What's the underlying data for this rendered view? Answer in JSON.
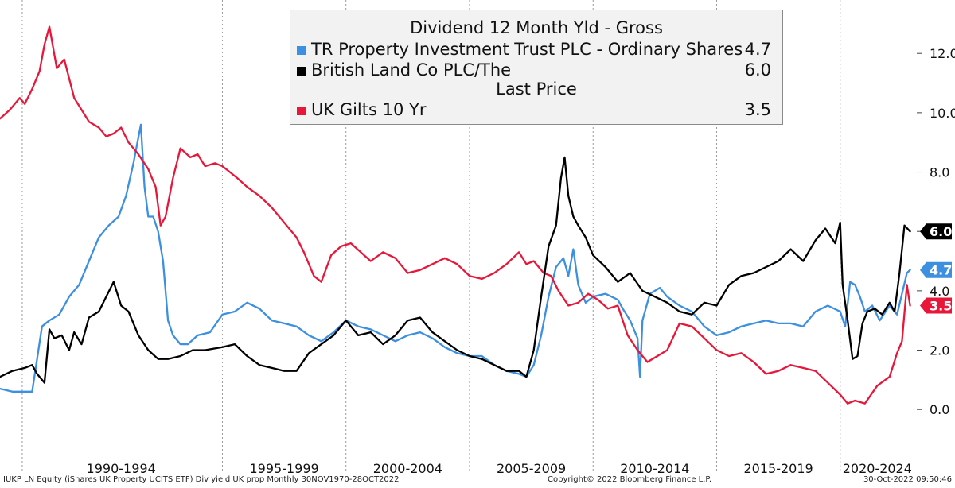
{
  "chart_data": {
    "type": "line",
    "title": "",
    "xlabel": "",
    "ylabel": "",
    "ylim": [
      -1.2,
      13.8
    ],
    "y_ticks": [
      "0.0",
      "2.0",
      "4.0",
      "6.0",
      "8.0",
      "10.0",
      "12.0"
    ],
    "y_tick_values": [
      0,
      2,
      4,
      6,
      8,
      10,
      12
    ],
    "x_range": [
      1986.0,
      2023.1
    ],
    "x_boundaries": [
      1986.9,
      1995.0,
      2000.0,
      2005.0,
      2010.0,
      2015.0,
      2020.0
    ],
    "x_period_labels": [
      {
        "label": "1990-1994",
        "center": 1990.9
      },
      {
        "label": "1995-1999",
        "center": 1997.5
      },
      {
        "label": "2000-2004",
        "center": 2002.5
      },
      {
        "label": "2005-2009",
        "center": 2007.5
      },
      {
        "label": "2010-2014",
        "center": 2012.5
      },
      {
        "label": "2015-2019",
        "center": 2017.5
      },
      {
        "label": "2020-2024",
        "center": 2021.5
      }
    ],
    "grid": "vertical dashed at period boundaries",
    "legend": {
      "position": "top-center",
      "section1_title": "Dividend 12 Month Yld - Gross",
      "section2_title": "Last Price"
    },
    "series": [
      {
        "name": "TR Property Investment Trust PLC - Ordinary Shares",
        "last_value": "4.7",
        "color": "#3d8fe0",
        "x": [
          1986.0,
          1986.5,
          1987.0,
          1987.3,
          1987.7,
          1988.0,
          1988.4,
          1988.8,
          1989.2,
          1989.6,
          1990.0,
          1990.4,
          1990.8,
          1991.1,
          1991.4,
          1991.7,
          1991.85,
          1992.0,
          1992.2,
          1992.4,
          1992.6,
          1992.8,
          1993.0,
          1993.3,
          1993.6,
          1994.0,
          1994.5,
          1995.0,
          1995.5,
          1996.0,
          1996.5,
          1997.0,
          1997.5,
          1998.0,
          1998.5,
          1999.0,
          1999.5,
          2000.0,
          2000.5,
          2001.0,
          2001.5,
          2002.0,
          2002.5,
          2003.0,
          2003.5,
          2004.0,
          2004.5,
          2005.0,
          2005.5,
          2006.0,
          2006.5,
          2007.0,
          2007.3,
          2007.6,
          2007.9,
          2008.2,
          2008.5,
          2008.8,
          2009.0,
          2009.2,
          2009.4,
          2009.7,
          2010.0,
          2010.5,
          2011.0,
          2011.2,
          2011.5,
          2011.8,
          2011.9,
          2012.0,
          2012.3,
          2012.7,
          2013.0,
          2013.5,
          2014.0,
          2014.5,
          2015.0,
          2015.5,
          2016.0,
          2016.5,
          2017.0,
          2017.5,
          2018.0,
          2018.5,
          2019.0,
          2019.5,
          2020.0,
          2020.2,
          2020.4,
          2020.6,
          2020.8,
          2021.0,
          2021.3,
          2021.6,
          2022.0,
          2022.3,
          2022.5,
          2022.7,
          2022.83
        ],
        "y": [
          0.7,
          0.6,
          0.6,
          0.6,
          2.8,
          3.0,
          3.2,
          3.8,
          4.2,
          5.0,
          5.8,
          6.2,
          6.5,
          7.2,
          8.3,
          9.6,
          7.5,
          6.5,
          6.5,
          6.0,
          5.0,
          3.0,
          2.5,
          2.2,
          2.2,
          2.5,
          2.6,
          3.2,
          3.3,
          3.6,
          3.4,
          3.0,
          2.9,
          2.8,
          2.5,
          2.3,
          2.6,
          3.0,
          2.8,
          2.7,
          2.5,
          2.3,
          2.5,
          2.6,
          2.4,
          2.1,
          1.9,
          1.8,
          1.8,
          1.5,
          1.3,
          1.2,
          1.1,
          1.5,
          2.5,
          3.8,
          4.8,
          5.1,
          4.5,
          5.4,
          4.2,
          3.6,
          3.8,
          3.9,
          3.7,
          3.4,
          3.0,
          2.4,
          1.1,
          3.0,
          3.9,
          4.1,
          3.8,
          3.5,
          3.3,
          2.8,
          2.5,
          2.6,
          2.8,
          2.9,
          3.0,
          2.9,
          2.9,
          2.8,
          3.3,
          3.5,
          3.3,
          2.8,
          4.3,
          4.2,
          3.8,
          3.3,
          3.5,
          3.0,
          3.5,
          3.2,
          3.9,
          4.6,
          4.7
        ]
      },
      {
        "name": "British Land Co PLC/The",
        "last_value": "6.0",
        "color": "#000000",
        "x": [
          1986.0,
          1986.5,
          1987.0,
          1987.3,
          1987.5,
          1987.8,
          1988.0,
          1988.2,
          1988.5,
          1988.8,
          1989.0,
          1989.3,
          1989.6,
          1990.0,
          1990.3,
          1990.6,
          1990.9,
          1991.2,
          1991.6,
          1992.0,
          1992.4,
          1992.8,
          1993.3,
          1993.8,
          1994.3,
          1995.0,
          1995.5,
          1996.0,
          1996.5,
          1997.0,
          1997.5,
          1998.0,
          1998.5,
          1999.0,
          1999.5,
          2000.0,
          2000.5,
          2001.0,
          2001.5,
          2002.0,
          2002.5,
          2003.0,
          2003.5,
          2004.0,
          2004.5,
          2005.0,
          2005.5,
          2006.0,
          2006.5,
          2007.0,
          2007.3,
          2007.6,
          2007.9,
          2008.2,
          2008.5,
          2008.7,
          2008.85,
          2009.0,
          2009.2,
          2009.4,
          2009.7,
          2010.0,
          2010.5,
          2011.0,
          2011.5,
          2012.0,
          2012.5,
          2013.0,
          2013.5,
          2014.0,
          2014.5,
          2015.0,
          2015.5,
          2016.0,
          2016.5,
          2017.0,
          2017.5,
          2018.0,
          2018.5,
          2019.0,
          2019.4,
          2019.8,
          2020.0,
          2020.1,
          2020.3,
          2020.5,
          2020.7,
          2020.9,
          2021.1,
          2021.4,
          2021.7,
          2022.0,
          2022.2,
          2022.4,
          2022.6,
          2022.83
        ],
        "y": [
          1.1,
          1.3,
          1.4,
          1.5,
          1.2,
          0.9,
          2.7,
          2.4,
          2.5,
          2.0,
          2.6,
          2.2,
          3.1,
          3.3,
          3.8,
          4.3,
          3.5,
          3.3,
          2.5,
          2.0,
          1.7,
          1.7,
          1.8,
          2.0,
          2.0,
          2.1,
          2.2,
          1.8,
          1.5,
          1.4,
          1.3,
          1.3,
          1.9,
          2.2,
          2.5,
          3.0,
          2.5,
          2.6,
          2.2,
          2.5,
          3.0,
          3.1,
          2.6,
          2.3,
          2.0,
          1.8,
          1.7,
          1.5,
          1.3,
          1.3,
          1.1,
          2.0,
          3.8,
          5.5,
          6.2,
          7.8,
          8.5,
          7.2,
          6.5,
          6.2,
          5.8,
          5.2,
          4.8,
          4.3,
          4.6,
          4.0,
          3.8,
          3.6,
          3.3,
          3.2,
          3.6,
          3.5,
          4.2,
          4.5,
          4.6,
          4.8,
          5.0,
          5.4,
          5.0,
          5.7,
          6.1,
          5.6,
          6.3,
          4.2,
          3.0,
          1.7,
          1.8,
          2.9,
          3.3,
          3.4,
          3.2,
          3.6,
          3.3,
          4.6,
          6.2,
          6.0
        ]
      },
      {
        "name": "UK Gilts 10 Yr",
        "last_value": "3.5",
        "color": "#e8173a",
        "x": [
          1986.0,
          1986.4,
          1986.8,
          1987.0,
          1987.3,
          1987.6,
          1987.8,
          1988.0,
          1988.3,
          1988.6,
          1989.0,
          1989.3,
          1989.6,
          1990.0,
          1990.3,
          1990.6,
          1990.9,
          1991.2,
          1991.6,
          1992.0,
          1992.3,
          1992.5,
          1992.7,
          1993.0,
          1993.3,
          1993.7,
          1994.0,
          1994.3,
          1994.7,
          1995.0,
          1995.3,
          1995.6,
          1996.0,
          1996.5,
          1997.0,
          1997.5,
          1998.0,
          1998.3,
          1998.7,
          1999.0,
          1999.4,
          1999.8,
          2000.2,
          2000.6,
          2001.0,
          2001.5,
          2002.0,
          2002.5,
          2003.0,
          2003.5,
          2004.0,
          2004.5,
          2005.0,
          2005.5,
          2006.0,
          2006.5,
          2007.0,
          2007.3,
          2007.6,
          2008.0,
          2008.3,
          2008.6,
          2009.0,
          2009.4,
          2009.8,
          2010.2,
          2010.6,
          2011.0,
          2011.4,
          2011.8,
          2012.2,
          2012.6,
          2013.0,
          2013.5,
          2014.0,
          2014.5,
          2015.0,
          2015.5,
          2016.0,
          2016.5,
          2017.0,
          2017.5,
          2018.0,
          2018.5,
          2019.0,
          2019.5,
          2020.0,
          2020.3,
          2020.6,
          2021.0,
          2021.5,
          2022.0,
          2022.3,
          2022.5,
          2022.7,
          2022.83
        ],
        "y": [
          9.8,
          10.1,
          10.5,
          10.3,
          10.8,
          11.4,
          12.3,
          12.9,
          11.5,
          11.8,
          10.5,
          10.1,
          9.7,
          9.5,
          9.2,
          9.3,
          9.5,
          9.0,
          8.6,
          8.1,
          7.5,
          6.2,
          6.5,
          7.8,
          8.8,
          8.5,
          8.6,
          8.2,
          8.3,
          8.2,
          8.0,
          7.8,
          7.5,
          7.2,
          6.8,
          6.3,
          5.8,
          5.3,
          4.5,
          4.3,
          5.2,
          5.5,
          5.6,
          5.3,
          5.0,
          5.3,
          5.1,
          4.6,
          4.7,
          4.9,
          5.1,
          4.9,
          4.5,
          4.4,
          4.6,
          4.9,
          5.3,
          4.9,
          5.0,
          4.6,
          4.5,
          4.0,
          3.5,
          3.6,
          3.9,
          3.7,
          3.4,
          3.5,
          2.5,
          2.0,
          1.6,
          1.8,
          2.0,
          2.9,
          2.8,
          2.4,
          2.0,
          1.8,
          1.9,
          1.6,
          1.2,
          1.3,
          1.5,
          1.4,
          1.3,
          0.9,
          0.5,
          0.2,
          0.3,
          0.2,
          0.8,
          1.1,
          1.9,
          2.3,
          4.2,
          3.5
        ]
      }
    ]
  },
  "footer": {
    "left": "IUKP LN Equity (iShares UK Property UCITS ETF) Div yield UK prop  Monthly 30NOV1970-28OCT2022",
    "center": "Copyright© 2022 Bloomberg Finance L.P.",
    "right": "30-Oct-2022 09:50:46"
  }
}
